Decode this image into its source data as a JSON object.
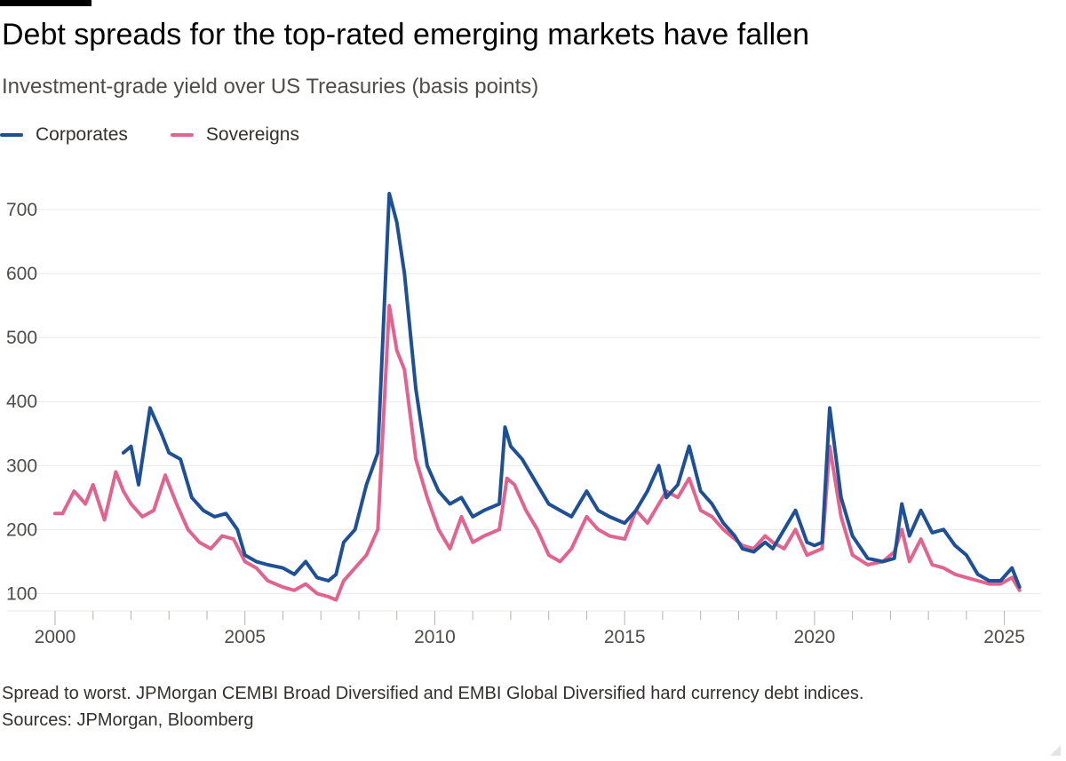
{
  "title": "Debt spreads for the top-rated emerging markets have fallen",
  "subtitle": "Investment-grade yield over US Treasuries (basis points)",
  "note": "Spread to worst. JPMorgan CEMBI Broad Diversified and EMBI Global Diversified hard currency debt indices.",
  "source": "Sources: JPMorgan, Bloomberg",
  "colors": {
    "corporates": "#1f5095",
    "sovereigns": "#e0648e",
    "grid": "#ece9e6",
    "tick": "#b5b1ad"
  },
  "chart_data": {
    "type": "line",
    "title": "Debt spreads for the top-rated emerging markets have fallen",
    "ylabel": "Investment-grade yield over US Treasuries (basis points)",
    "xlabel": "",
    "xlim": [
      2000,
      2025.5
    ],
    "ylim": [
      70,
      750
    ],
    "yticks": [
      100,
      200,
      300,
      400,
      500,
      600,
      700
    ],
    "xticks": [
      2000,
      2005,
      2010,
      2015,
      2020,
      2025
    ],
    "grid": true,
    "legend_position": "top-left",
    "series": [
      {
        "name": "Corporates",
        "color": "#1f5095",
        "x": [
          2001.8,
          2002.0,
          2002.2,
          2002.5,
          2002.8,
          2003.0,
          2003.3,
          2003.6,
          2003.9,
          2004.2,
          2004.5,
          2004.8,
          2005.0,
          2005.3,
          2005.6,
          2006.0,
          2006.3,
          2006.6,
          2006.9,
          2007.2,
          2007.4,
          2007.6,
          2007.9,
          2008.2,
          2008.5,
          2008.8,
          2009.0,
          2009.2,
          2009.5,
          2009.8,
          2010.1,
          2010.4,
          2010.7,
          2011.0,
          2011.3,
          2011.7,
          2011.85,
          2012.0,
          2012.3,
          2012.6,
          2013.0,
          2013.3,
          2013.6,
          2014.0,
          2014.3,
          2014.6,
          2015.0,
          2015.3,
          2015.6,
          2015.9,
          2016.1,
          2016.4,
          2016.7,
          2017.0,
          2017.3,
          2017.6,
          2017.9,
          2018.1,
          2018.4,
          2018.7,
          2018.9,
          2019.2,
          2019.5,
          2019.8,
          2020.0,
          2020.2,
          2020.4,
          2020.7,
          2021.0,
          2021.4,
          2021.8,
          2022.1,
          2022.3,
          2022.5,
          2022.8,
          2023.1,
          2023.4,
          2023.7,
          2024.0,
          2024.3,
          2024.6,
          2024.9,
          2025.2,
          2025.4
        ],
        "values": [
          320,
          330,
          270,
          390,
          350,
          320,
          310,
          250,
          230,
          220,
          225,
          200,
          160,
          150,
          145,
          140,
          130,
          150,
          125,
          120,
          130,
          180,
          200,
          270,
          320,
          725,
          680,
          600,
          420,
          300,
          260,
          240,
          250,
          220,
          230,
          240,
          360,
          330,
          310,
          280,
          240,
          230,
          220,
          260,
          230,
          220,
          210,
          230,
          260,
          300,
          250,
          270,
          330,
          260,
          240,
          210,
          190,
          170,
          165,
          180,
          170,
          200,
          230,
          180,
          175,
          180,
          390,
          250,
          190,
          155,
          150,
          155,
          240,
          190,
          230,
          195,
          200,
          175,
          160,
          130,
          120,
          120,
          140,
          110
        ]
      },
      {
        "name": "Sovereigns",
        "color": "#e0648e",
        "x": [
          2000.0,
          2000.2,
          2000.5,
          2000.8,
          2001.0,
          2001.3,
          2001.6,
          2001.8,
          2002.0,
          2002.3,
          2002.6,
          2002.9,
          2003.2,
          2003.5,
          2003.8,
          2004.1,
          2004.4,
          2004.7,
          2005.0,
          2005.3,
          2005.6,
          2006.0,
          2006.3,
          2006.6,
          2006.9,
          2007.2,
          2007.4,
          2007.6,
          2007.9,
          2008.2,
          2008.5,
          2008.8,
          2009.0,
          2009.2,
          2009.5,
          2009.8,
          2010.1,
          2010.4,
          2010.7,
          2011.0,
          2011.3,
          2011.7,
          2011.9,
          2012.1,
          2012.4,
          2012.7,
          2013.0,
          2013.3,
          2013.6,
          2014.0,
          2014.3,
          2014.6,
          2015.0,
          2015.3,
          2015.6,
          2015.9,
          2016.1,
          2016.4,
          2016.7,
          2017.0,
          2017.3,
          2017.6,
          2017.9,
          2018.1,
          2018.4,
          2018.7,
          2018.9,
          2019.2,
          2019.5,
          2019.8,
          2020.0,
          2020.2,
          2020.4,
          2020.7,
          2021.0,
          2021.4,
          2021.8,
          2022.1,
          2022.3,
          2022.5,
          2022.8,
          2023.1,
          2023.4,
          2023.7,
          2024.0,
          2024.3,
          2024.6,
          2024.9,
          2025.2,
          2025.4
        ],
        "values": [
          225,
          225,
          260,
          240,
          270,
          215,
          290,
          260,
          240,
          220,
          230,
          285,
          240,
          200,
          180,
          170,
          190,
          185,
          150,
          140,
          120,
          110,
          105,
          115,
          100,
          95,
          90,
          120,
          140,
          160,
          200,
          550,
          480,
          450,
          310,
          250,
          200,
          170,
          220,
          180,
          190,
          200,
          280,
          270,
          230,
          200,
          160,
          150,
          170,
          220,
          200,
          190,
          185,
          230,
          210,
          240,
          260,
          250,
          280,
          230,
          220,
          200,
          185,
          175,
          170,
          190,
          180,
          170,
          200,
          160,
          165,
          170,
          330,
          220,
          160,
          145,
          150,
          165,
          200,
          150,
          185,
          145,
          140,
          130,
          125,
          120,
          115,
          115,
          125,
          105
        ]
      }
    ]
  }
}
